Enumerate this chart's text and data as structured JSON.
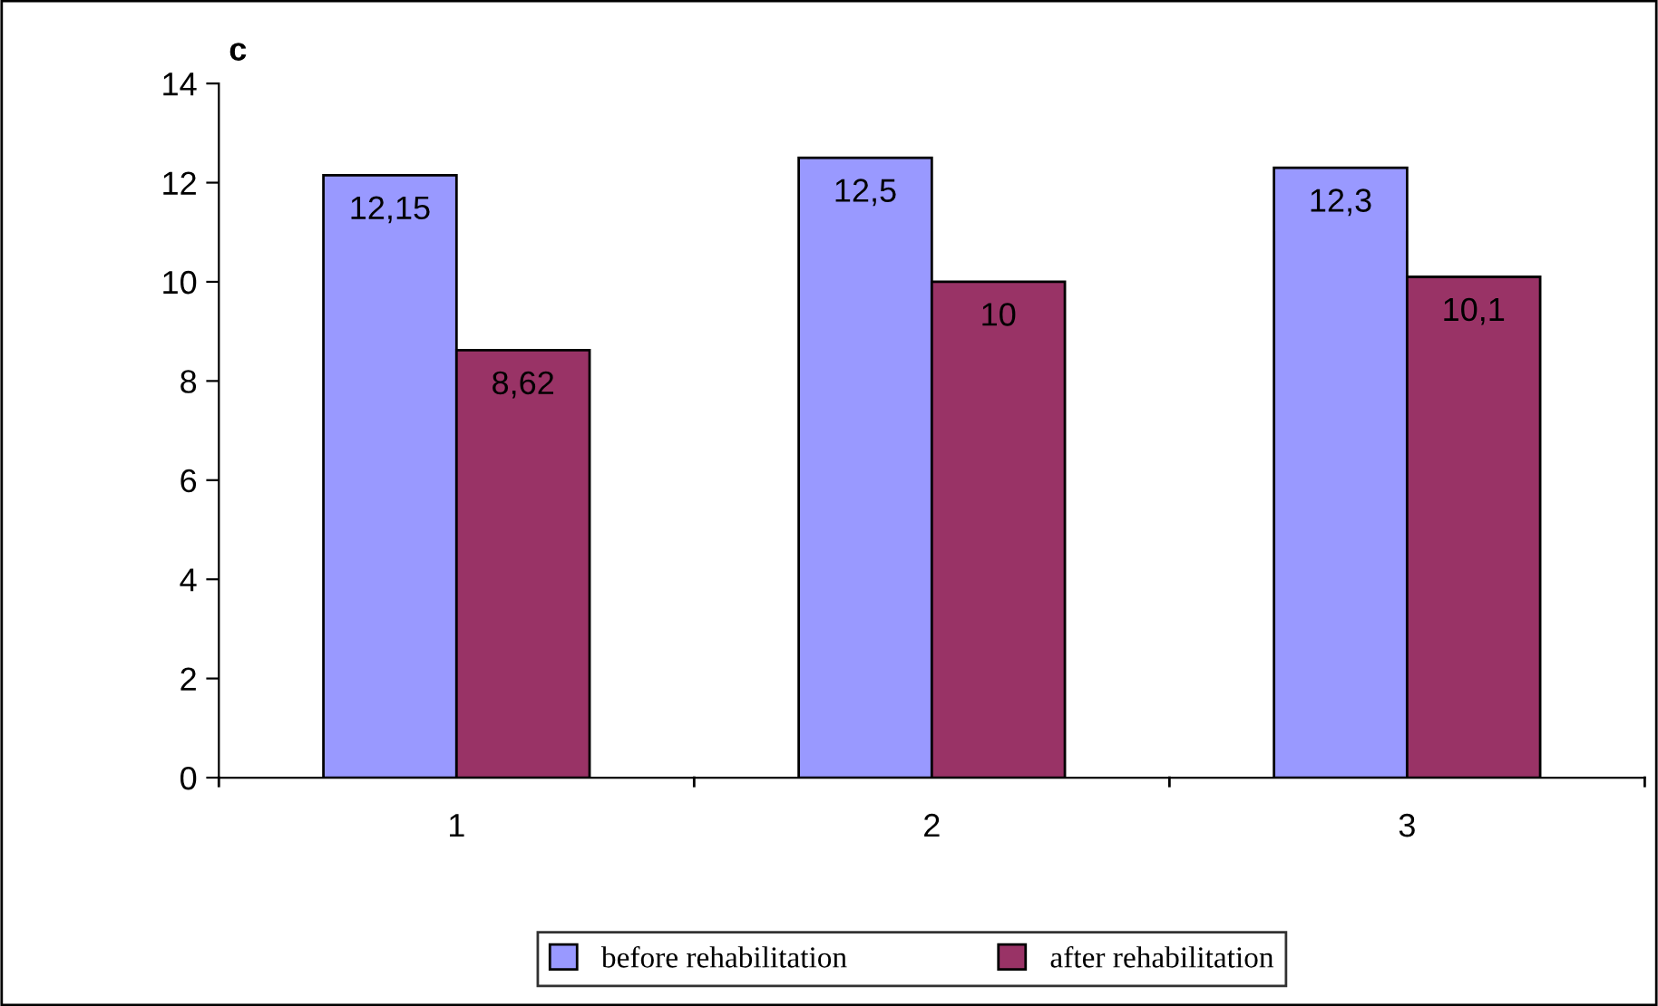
{
  "chart_data": {
    "type": "bar",
    "title": "c",
    "categories": [
      "1",
      "2",
      "3"
    ],
    "series": [
      {
        "name": "before rehabilitation",
        "color": "#9999ff",
        "values": [
          12.15,
          12.5,
          12.3
        ],
        "value_labels": [
          "12,15",
          "12,5",
          "12,3"
        ]
      },
      {
        "name": "after rehabilitation",
        "color": "#993366",
        "values": [
          8.62,
          10,
          10.1
        ],
        "value_labels": [
          "8,62",
          "10",
          "10,1"
        ]
      }
    ],
    "ylim": [
      0,
      14
    ],
    "yticks": [
      0,
      2,
      4,
      6,
      8,
      10,
      12,
      14
    ],
    "grid": false,
    "legend": "bottom"
  }
}
